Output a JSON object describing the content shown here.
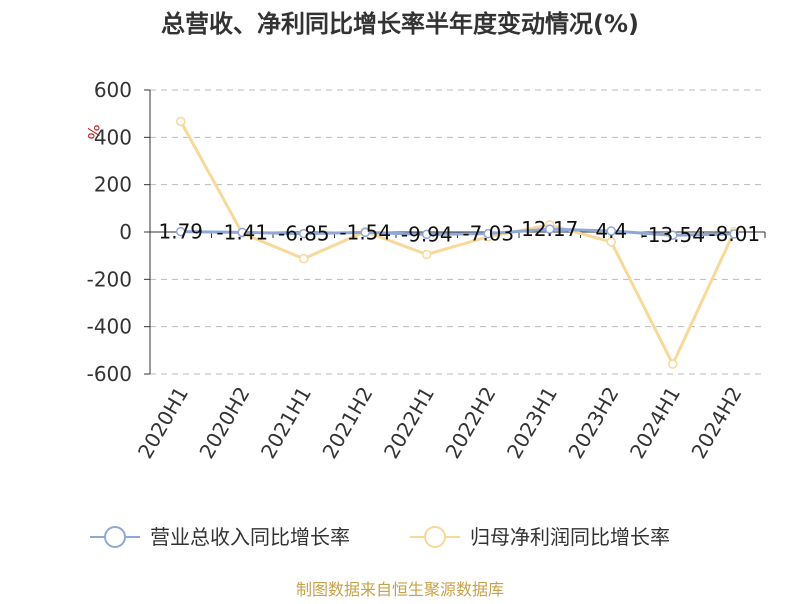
{
  "chart_data": {
    "type": "line",
    "title": "总营收、净利同比增长率半年度变动情况(%)",
    "ylabel": "%",
    "xlabel": "",
    "categories": [
      "2020H1",
      "2020H2",
      "2021H1",
      "2021H2",
      "2022H1",
      "2022H2",
      "2023H1",
      "2023H2",
      "2024H1",
      "2024H2"
    ],
    "ylim": [
      -600,
      600
    ],
    "yticks": [
      "600",
      "400",
      "200",
      "0",
      "-200",
      "-400",
      "-600"
    ],
    "series": [
      {
        "name": "营业总收入同比增长率",
        "color": "#8fa8d8",
        "values": [
          1.79,
          -1.41,
          -6.85,
          -1.54,
          -9.94,
          -7.03,
          12.17,
          4.4,
          -13.54,
          -8.01
        ],
        "labels": [
          "1.79",
          "-1.41",
          "-6.85",
          "-1.54",
          "-9.94",
          "-7.03",
          "12.17",
          "4.4",
          "-13.54",
          "-8.01"
        ]
      },
      {
        "name": "归母净利润同比增长率",
        "color": "#f9d99a",
        "values": [
          467,
          -5,
          -113,
          2,
          -95,
          -20,
          30,
          -42,
          -558,
          2
        ]
      }
    ],
    "grid": true,
    "legend_position": "bottom"
  },
  "source": "制图数据来自恒生聚源数据库"
}
